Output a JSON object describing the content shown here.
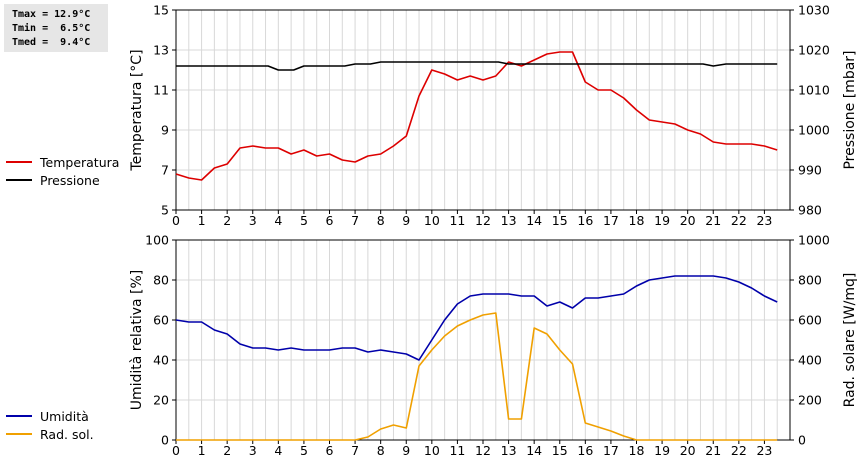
{
  "stats": {
    "tmax": "Tmax = 12.9°C",
    "tmin": "Tmin =  6.5°C",
    "tmed": "Tmed =  9.4°C"
  },
  "legend_top": [
    {
      "label": "Temperatura",
      "color": "#dd0000"
    },
    {
      "label": "Pressione",
      "color": "#000000"
    }
  ],
  "legend_bottom": [
    {
      "label": "Umidità",
      "color": "#0000aa"
    },
    {
      "label": "Rad. sol.",
      "color": "#f0a000"
    }
  ],
  "chart_data": [
    {
      "type": "line",
      "ylabel": "Temperatura [°C]",
      "y2label": "Pressione [mbar]",
      "xlim": [
        0,
        24
      ],
      "ylim": [
        5,
        15
      ],
      "y2lim": [
        980,
        1030
      ],
      "xticks": [
        0,
        1,
        2,
        3,
        4,
        5,
        6,
        7,
        8,
        9,
        10,
        11,
        12,
        13,
        14,
        15,
        16,
        17,
        18,
        19,
        20,
        21,
        22,
        23
      ],
      "yticks": [
        5,
        7,
        9,
        11,
        13,
        15
      ],
      "y2ticks": [
        980,
        990,
        1000,
        1010,
        1020,
        1030
      ],
      "grid": true,
      "series": [
        {
          "name": "Temperatura",
          "color": "#dd0000",
          "axis": "left",
          "x": [
            0,
            0.5,
            1,
            1.5,
            2,
            2.5,
            3,
            3.5,
            4,
            4.5,
            5,
            5.5,
            6,
            6.5,
            7,
            7.5,
            8,
            8.5,
            9,
            9.5,
            10,
            10.5,
            11,
            11.5,
            12,
            12.5,
            13,
            13.5,
            14,
            14.5,
            15,
            15.5,
            16,
            16.5,
            17,
            17.5,
            18,
            18.5,
            19,
            19.5,
            20,
            20.5,
            21,
            21.5,
            22,
            22.5,
            23,
            23.5
          ],
          "y": [
            6.8,
            6.6,
            6.5,
            7.1,
            7.3,
            8.1,
            8.2,
            8.1,
            8.1,
            7.8,
            8.0,
            7.7,
            7.8,
            7.5,
            7.4,
            7.7,
            7.8,
            8.2,
            8.7,
            10.7,
            12.0,
            11.8,
            11.5,
            11.7,
            11.5,
            11.7,
            12.4,
            12.2,
            12.5,
            12.8,
            12.9,
            12.9,
            11.4,
            11.0,
            11.0,
            10.6,
            10.0,
            9.5,
            9.4,
            9.3,
            9.0,
            8.8,
            8.4,
            8.3,
            8.3,
            8.3,
            8.2,
            8.0
          ]
        },
        {
          "name": "Pressione",
          "color": "#000000",
          "axis": "right",
          "x": [
            0,
            1,
            2,
            3,
            3.6,
            4,
            4.6,
            5,
            5.6,
            6,
            6.6,
            7,
            7.6,
            8,
            9,
            10,
            11,
            12,
            12.6,
            13,
            14,
            15,
            16,
            17,
            18,
            19,
            20,
            20.6,
            21,
            21.5,
            22,
            23,
            23.5
          ],
          "y": [
            1016,
            1016,
            1016,
            1016,
            1016,
            1015,
            1015,
            1016,
            1016,
            1016,
            1016,
            1016.5,
            1016.5,
            1017,
            1017,
            1017,
            1017,
            1017,
            1017,
            1016.5,
            1016.5,
            1016.5,
            1016.5,
            1016.5,
            1016.5,
            1016.5,
            1016.5,
            1016.5,
            1016,
            1016.5,
            1016.5,
            1016.5,
            1016.5
          ]
        }
      ]
    },
    {
      "type": "line",
      "ylabel": "Umidità relativa [%]",
      "y2label": "Rad. solare [W/mq]",
      "xlim": [
        0,
        24
      ],
      "ylim": [
        0,
        100
      ],
      "y2lim": [
        0,
        1000
      ],
      "xticks": [
        0,
        1,
        2,
        3,
        4,
        5,
        6,
        7,
        8,
        9,
        10,
        11,
        12,
        13,
        14,
        15,
        16,
        17,
        18,
        19,
        20,
        21,
        22,
        23
      ],
      "yticks": [
        0,
        20,
        40,
        60,
        80,
        100
      ],
      "y2ticks": [
        0,
        200,
        400,
        600,
        800,
        1000
      ],
      "grid": true,
      "series": [
        {
          "name": "Umidità",
          "color": "#0000aa",
          "axis": "left",
          "x": [
            0,
            0.5,
            1,
            1.5,
            2,
            2.5,
            3,
            3.5,
            4,
            4.5,
            5,
            5.5,
            6,
            6.5,
            7,
            7.5,
            8,
            8.5,
            9,
            9.5,
            10,
            10.5,
            11,
            11.5,
            12,
            12.5,
            13,
            13.5,
            14,
            14.5,
            15,
            15.5,
            16,
            16.5,
            17,
            17.5,
            18,
            18.5,
            19,
            19.5,
            20,
            20.5,
            21,
            21.5,
            22,
            22.5,
            23,
            23.5
          ],
          "y": [
            60,
            59,
            59,
            55,
            53,
            48,
            46,
            46,
            45,
            46,
            45,
            45,
            45,
            46,
            46,
            44,
            45,
            44,
            43,
            40,
            50,
            60,
            68,
            72,
            73,
            73,
            73,
            72,
            72,
            67,
            69,
            66,
            71,
            71,
            72,
            73,
            77,
            80,
            81,
            82,
            82,
            82,
            82,
            81,
            79,
            76,
            72,
            69
          ]
        },
        {
          "name": "Rad. sol.",
          "color": "#f0a000",
          "axis": "right",
          "x": [
            0,
            1,
            2,
            3,
            4,
            5,
            6,
            7,
            7.5,
            8,
            8.5,
            9,
            9.5,
            10,
            10.5,
            11,
            11.5,
            12,
            12.5,
            13,
            13.5,
            14,
            14.5,
            15,
            15.5,
            16,
            16.5,
            17,
            17.5,
            18,
            19,
            20,
            21,
            22,
            23,
            23.5
          ],
          "y": [
            0,
            0,
            0,
            0,
            0,
            0,
            0,
            0,
            15,
            55,
            75,
            60,
            370,
            450,
            520,
            570,
            600,
            625,
            635,
            105,
            105,
            560,
            530,
            450,
            380,
            85,
            65,
            45,
            20,
            0,
            0,
            0,
            0,
            0,
            0,
            0
          ]
        }
      ]
    }
  ]
}
